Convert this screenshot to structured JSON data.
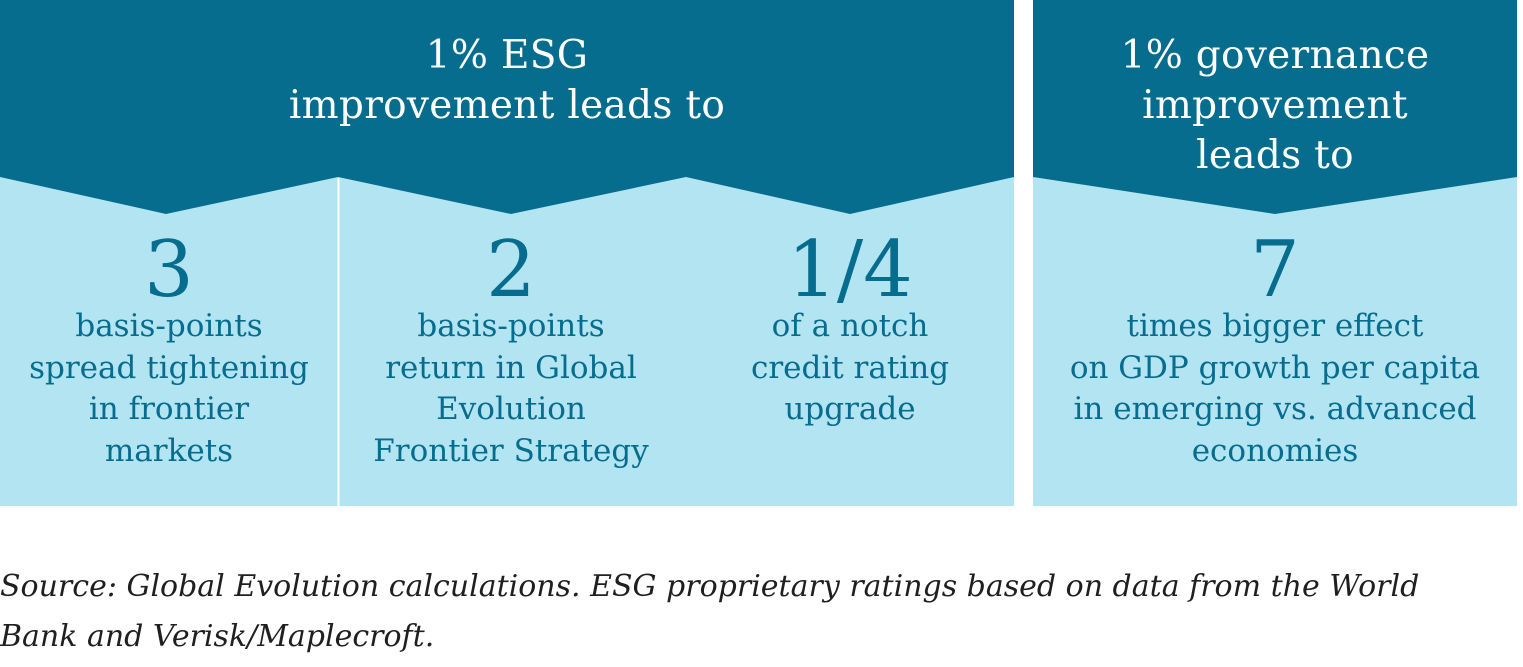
{
  "colors": {
    "header_bg": "#066d8f",
    "panel_bg": "#b3e4f2",
    "text_dark": "#066d8f",
    "header_text": "#ffffff",
    "divider": "#ffffff"
  },
  "esg": {
    "header": [
      "1% ESG",
      "improvement leads to"
    ],
    "items": [
      {
        "value": "3",
        "desc": [
          "basis-points",
          "spread tightening",
          "in frontier",
          "markets"
        ]
      },
      {
        "value": "2",
        "desc": [
          "basis-points",
          "return in Global",
          "Evolution",
          "Frontier Strategy"
        ]
      },
      {
        "value": "1/4",
        "desc": [
          "of a notch",
          "credit rating",
          "upgrade"
        ]
      }
    ]
  },
  "governance": {
    "header": [
      "1% governance",
      "improvement",
      "leads to"
    ],
    "value": "7",
    "desc": [
      "times bigger effect",
      "on GDP growth per capita",
      "in emerging vs. advanced",
      "economies"
    ]
  },
  "source": [
    "Source: Global Evolution calculations. ESG proprietary ratings based on data from the World",
    "Bank and Verisk/Maplecroft."
  ]
}
